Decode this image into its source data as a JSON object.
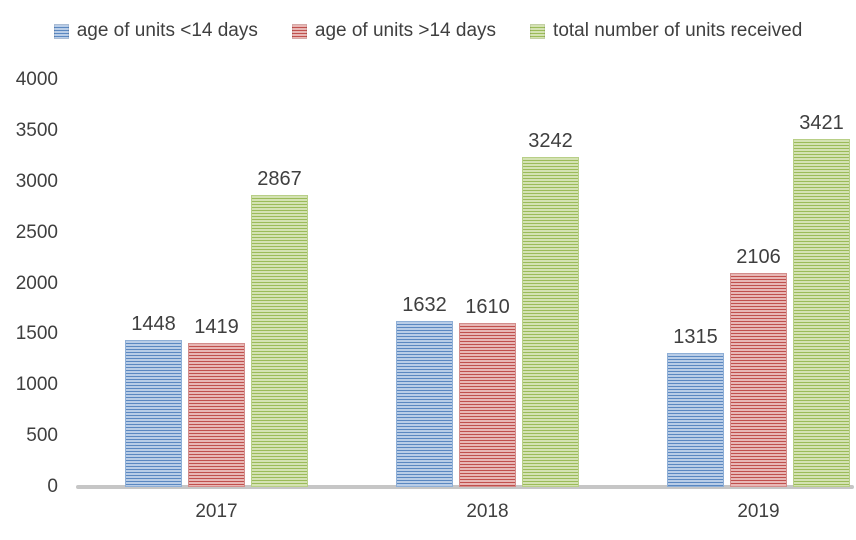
{
  "chart_data": {
    "type": "bar",
    "title": "",
    "categories": [
      "2017",
      "2018",
      "2019"
    ],
    "series": [
      {
        "name": "age of units <14 days",
        "color": "#4f81bd",
        "base_color": "#b9cde7",
        "stripe_color": "#5b88c1",
        "edge_color": "#8fafd6",
        "values": [
          1448,
          1632,
          1315
        ]
      },
      {
        "name": "age of units >14 days",
        "color": "#c0504d",
        "base_color": "#e8b7b5",
        "stripe_color": "#c0504d",
        "edge_color": "#d38d8b",
        "values": [
          1419,
          1610,
          2106
        ]
      },
      {
        "name": "total number of units received",
        "color": "#9bbb59",
        "base_color": "#d4e2b3",
        "stripe_color": "#9bbb59",
        "edge_color": "#b8cf87",
        "values": [
          2867,
          3242,
          3421
        ]
      }
    ],
    "ylim": [
      0,
      4000
    ],
    "ytick_step": 500,
    "ytick_labels": [
      "4000",
      "3500",
      "3000",
      "2500",
      "2000",
      "1500",
      "1000",
      "500",
      "0"
    ],
    "grid": false,
    "legend_position": "top",
    "axis_line_color": "#c6c6c6",
    "text_color": "#3f3f3f"
  }
}
